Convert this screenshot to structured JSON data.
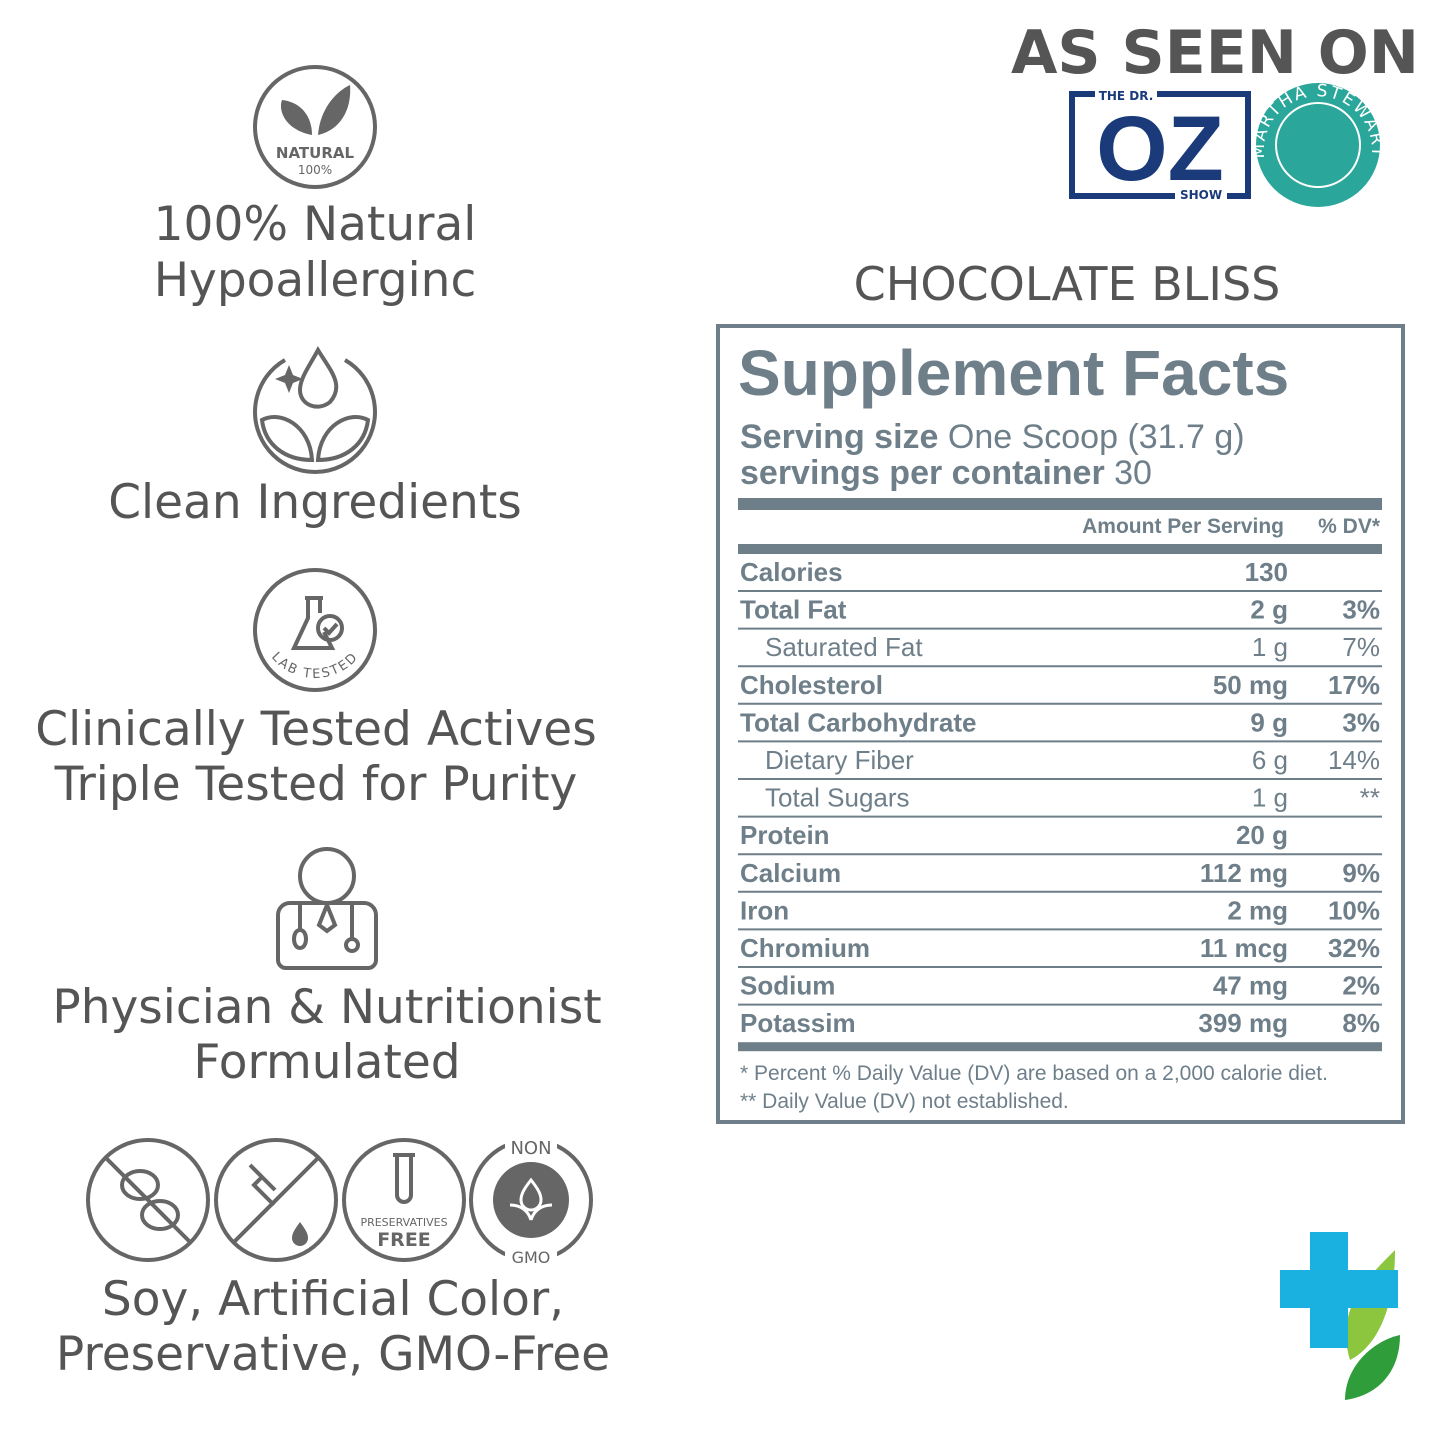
{
  "features": [
    {
      "icon_text": [
        "NATURAL",
        "100%"
      ],
      "lines": [
        "100% Natural",
        "Hypoallerginc"
      ]
    },
    {
      "lines": [
        "Clean Ingredients"
      ]
    },
    {
      "icon_text": [
        "LAB TESTED"
      ],
      "lines": [
        "Clinically Tested Actives",
        "Triple Tested for Purity"
      ]
    },
    {
      "lines": [
        "Physician & Nutritionist",
        "Formulated"
      ]
    },
    {
      "icon_text": [
        "PRESERVATIVES",
        "FREE",
        "NON",
        "GMO"
      ],
      "lines": [
        "Soy, Artificial Color,",
        "Preservative, GMO-Free"
      ]
    }
  ],
  "as_seen_on": {
    "title": "AS SEEN ON",
    "oz": {
      "top": "THE DR.",
      "main": "OZ",
      "bottom": "SHOW"
    },
    "martha": "MARTHA STEWART"
  },
  "product": "CHOCOLATE BLISS",
  "facts": {
    "title": "Supplement Facts",
    "serving_size_label": "Serving size",
    "serving_size": "One Scoop (31.7 g)",
    "servings_label": "servings per container",
    "servings": "30",
    "header": [
      "Amount Per Serving",
      "% DV*"
    ],
    "rows": [
      {
        "name": "Calories",
        "amount": "130"
      },
      {
        "name": "Total Fat",
        "amount": "2 g",
        "dv": "3%"
      },
      {
        "name": "Saturated Fat",
        "amount": "1 g",
        "dv": "7%",
        "indent": true
      },
      {
        "name": "Cholesterol",
        "amount": "50 mg",
        "dv": "17%"
      },
      {
        "name": "Total Carbohydrate",
        "amount": "9 g",
        "dv": "3%"
      },
      {
        "name": "Dietary Fiber",
        "amount": "6 g",
        "dv": "14%",
        "indent": true
      },
      {
        "name": "Total Sugars",
        "amount": "1 g",
        "dv": "**",
        "indent": true
      },
      {
        "name": "Protein",
        "amount": "20 g"
      },
      {
        "name": "Calcium",
        "amount": "112 mg",
        "dv": "9%"
      },
      {
        "name": "Iron",
        "amount": "2 mg",
        "dv": "10%"
      },
      {
        "name": "Chromium",
        "amount": "11 mcg",
        "dv": "32%"
      },
      {
        "name": "Sodium",
        "amount": "47 mg",
        "dv": "2%"
      },
      {
        "name": "Potassim",
        "amount": "399 mg",
        "dv": "8%"
      }
    ],
    "footnotes": [
      "* Percent % Daily Value (DV) are based on a 2,000 calorie diet.",
      "** Daily Value (DV) not established."
    ]
  }
}
